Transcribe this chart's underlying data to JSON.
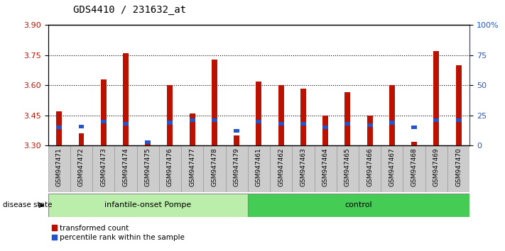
{
  "title": "GDS4410 / 231632_at",
  "samples": [
    "GSM947471",
    "GSM947472",
    "GSM947473",
    "GSM947474",
    "GSM947475",
    "GSM947476",
    "GSM947477",
    "GSM947478",
    "GSM947479",
    "GSM947461",
    "GSM947462",
    "GSM947463",
    "GSM947464",
    "GSM947465",
    "GSM947466",
    "GSM947467",
    "GSM947468",
    "GSM947469",
    "GSM947470"
  ],
  "transformed_count": [
    3.47,
    3.36,
    3.63,
    3.76,
    3.31,
    3.6,
    3.46,
    3.73,
    3.35,
    3.62,
    3.6,
    3.585,
    3.45,
    3.565,
    3.45,
    3.6,
    3.32,
    3.77,
    3.7
  ],
  "percentile_rank": [
    15,
    16,
    20,
    18,
    3,
    19,
    21,
    21,
    12,
    20,
    18,
    18,
    15,
    18,
    17,
    19,
    15,
    21,
    21
  ],
  "baseline": 3.3,
  "ylim_left": [
    3.3,
    3.9
  ],
  "ylim_right": [
    0,
    100
  ],
  "yticks_left": [
    3.3,
    3.45,
    3.6,
    3.75,
    3.9
  ],
  "yticks_right": [
    0,
    25,
    50,
    75,
    100
  ],
  "ytick_labels_right": [
    "0",
    "25",
    "50",
    "75",
    "100%"
  ],
  "hlines": [
    3.45,
    3.6,
    3.75
  ],
  "group1_label": "infantile-onset Pompe",
  "group2_label": "control",
  "group1_count": 9,
  "disease_state_label": "disease state",
  "legend_red": "transformed count",
  "legend_blue": "percentile rank within the sample",
  "bar_color_red": "#bb1100",
  "bar_color_blue": "#2255cc",
  "group1_bg": "#bbeeaa",
  "group2_bg": "#44cc55",
  "tick_bg": "#cccccc",
  "bar_width": 0.25,
  "title_fontsize": 10,
  "axis_fontsize": 8,
  "label_fontsize": 8.5
}
